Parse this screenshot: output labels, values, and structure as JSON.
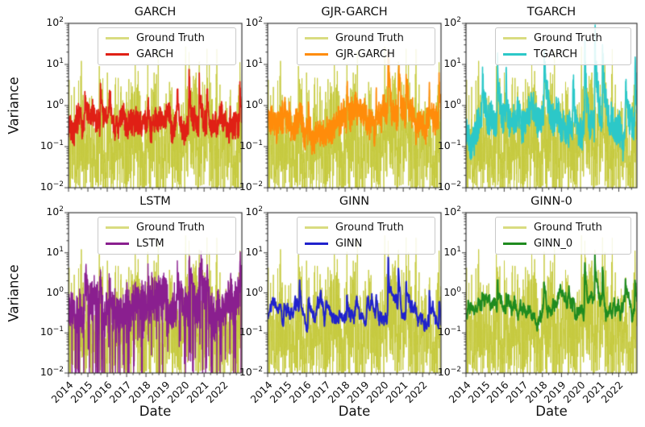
{
  "figure": {
    "background": "#ffffff"
  },
  "shared": {
    "axes": {
      "ylabel": "Variance",
      "xlabel": "Date",
      "scale": "log",
      "xlim": [
        2014,
        2022.95
      ],
      "ylim": [
        0.01,
        100
      ],
      "xticks": [
        "2014",
        "2015",
        "2016",
        "2017",
        "2018",
        "2019",
        "2020",
        "2021",
        "2022"
      ],
      "ytick_base": "10",
      "ytick_exponents": [
        "2",
        "1",
        "0",
        "−1",
        "−2"
      ],
      "ytick_labels": [
        "10²",
        "10¹",
        "10⁰",
        "10⁻¹",
        "10⁻²"
      ],
      "grid": false,
      "legend_position": "upper center"
    },
    "ground_truth": {
      "label": "Ground Truth",
      "color": "#c6ca3f",
      "legend_color": "#d9dc80",
      "sim": {
        "seed": 42,
        "n": 880,
        "base": -0.25,
        "env_walk": 0.22,
        "env_revert": 0.06,
        "spread": 1.15,
        "drop_prob": 0.012
      }
    },
    "events": [
      {
        "x": 2014.85,
        "h": 1.0
      },
      {
        "x": 2015.65,
        "h": 1.45
      },
      {
        "x": 2016.1,
        "h": 1.1
      },
      {
        "x": 2018.09,
        "h": 1.35
      },
      {
        "x": 2019.6,
        "h": 1.0
      },
      {
        "x": 2020.22,
        "h": 2.35
      },
      {
        "x": 2020.75,
        "h": 2.2
      },
      {
        "x": 2021.15,
        "h": 1.8
      },
      {
        "x": 2022.35,
        "h": 1.15
      },
      {
        "x": 2022.85,
        "h": 1.3
      }
    ]
  },
  "chart_data": [
    {
      "type": "line",
      "title": "GARCH",
      "position": {
        "row": 0,
        "col": 0
      },
      "show_xtick_labels": false,
      "show_ylabel": true,
      "show_xlabel": false,
      "legend": [
        {
          "label": "Ground Truth",
          "color": "#d9dc80"
        },
        {
          "label": "GARCH",
          "color": "#e02015"
        }
      ],
      "model": {
        "name": "GARCH",
        "color": "#e02015",
        "sim": {
          "seed": 7,
          "n": 880,
          "base": -0.42,
          "walk": 0.09,
          "revert": 0.04,
          "noise": 0.3,
          "gain": 0.52,
          "lw": 1.7
        }
      }
    },
    {
      "type": "line",
      "title": "GJR-GARCH",
      "position": {
        "row": 0,
        "col": 1
      },
      "show_xtick_labels": false,
      "show_ylabel": false,
      "show_xlabel": false,
      "legend": [
        {
          "label": "Ground Truth",
          "color": "#d9dc80"
        },
        {
          "label": "GJR-GARCH",
          "color": "#ff8c0a"
        }
      ],
      "model": {
        "name": "GJR-GARCH",
        "color": "#ff8c0a",
        "sim": {
          "seed": 11,
          "n": 880,
          "base": -0.36,
          "walk": 0.09,
          "revert": 0.04,
          "noise": 0.33,
          "gain": 0.55,
          "lw": 1.7
        }
      }
    },
    {
      "type": "line",
      "title": "TGARCH",
      "position": {
        "row": 0,
        "col": 2
      },
      "show_xtick_labels": false,
      "show_ylabel": false,
      "show_xlabel": false,
      "legend": [
        {
          "label": "Ground Truth",
          "color": "#d9dc80"
        },
        {
          "label": "TGARCH",
          "color": "#2cc8c8"
        }
      ],
      "model": {
        "name": "TGARCH",
        "color": "#2cc8c8",
        "sim": {
          "seed": 13,
          "n": 880,
          "base": -0.4,
          "walk": 0.1,
          "revert": 0.04,
          "noise": 0.38,
          "gain": 1.02,
          "lw": 1.6
        }
      }
    },
    {
      "type": "line",
      "title": "LSTM",
      "position": {
        "row": 1,
        "col": 0
      },
      "show_xtick_labels": true,
      "show_ylabel": true,
      "show_xlabel": true,
      "legend": [
        {
          "label": "Ground Truth",
          "color": "#d9dc80"
        },
        {
          "label": "LSTM",
          "color": "#8a1f8f"
        }
      ],
      "model": {
        "name": "LSTM",
        "color": "#8a1f8f",
        "sim": {
          "seed": 17,
          "n": 1000,
          "base": -0.3,
          "walk": 0.1,
          "revert": 0.05,
          "noise": 0.5,
          "gain": 0.5,
          "drop_prob": 0.1,
          "drop_depth": 1.6,
          "lw": 1.4
        }
      }
    },
    {
      "type": "line",
      "title": "GINN",
      "position": {
        "row": 1,
        "col": 1
      },
      "show_xtick_labels": true,
      "show_ylabel": false,
      "show_xlabel": true,
      "legend": [
        {
          "label": "Ground Truth",
          "color": "#d9dc80"
        },
        {
          "label": "GINN",
          "color": "#2022cc"
        }
      ],
      "model": {
        "name": "GINN",
        "color": "#2022cc",
        "sim": {
          "seed": 23,
          "n": 700,
          "base": -0.5,
          "walk": 0.12,
          "revert": 0.06,
          "noise": 0.07,
          "gain": 0.55,
          "lw": 2.0
        }
      }
    },
    {
      "type": "line",
      "title": "GINN-0",
      "position": {
        "row": 1,
        "col": 2
      },
      "show_xtick_labels": true,
      "show_ylabel": false,
      "show_xlabel": true,
      "legend": [
        {
          "label": "Ground Truth",
          "color": "#d9dc80"
        },
        {
          "label": "GINN_0",
          "color": "#1f8b1f"
        }
      ],
      "model": {
        "name": "GINN_0",
        "color": "#1f8b1f",
        "sim": {
          "seed": 29,
          "n": 700,
          "base": -0.38,
          "walk": 0.12,
          "revert": 0.06,
          "noise": 0.07,
          "gain": 0.5,
          "lw": 2.0
        }
      }
    }
  ]
}
